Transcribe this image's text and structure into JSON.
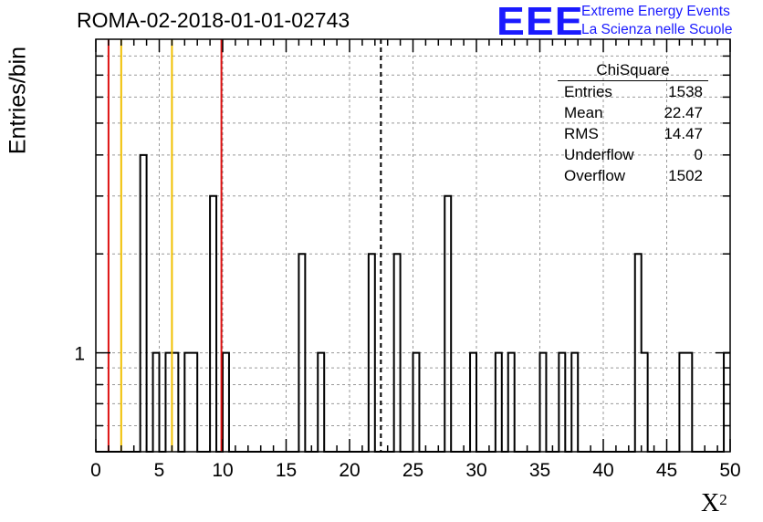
{
  "title": "ROMA-02-2018-01-01-02743",
  "logo": {
    "mark": "EEE",
    "line1": "Extreme Energy Events",
    "line2": "La Scienza nelle Scuole"
  },
  "stats": {
    "title": "ChiSquare",
    "rows": [
      {
        "label": "Entries",
        "value": "1538"
      },
      {
        "label": "Mean",
        "value": "22.47"
      },
      {
        "label": "RMS",
        "value": "14.47"
      },
      {
        "label": "Underflow",
        "value": "0"
      },
      {
        "label": "Overflow",
        "value": "1502"
      }
    ]
  },
  "colors": {
    "histogram": "#000000",
    "red_line": "#dd1111",
    "yellow_line": "#f0c000",
    "grid": "#999999"
  },
  "chart_data": {
    "type": "histogram",
    "ylabel": "Entries/bin",
    "xlabel": "X",
    "xlabel_sup": "2",
    "xlim": [
      0,
      50
    ],
    "y_scale": "log",
    "ylim": [
      0.5,
      9
    ],
    "grid": true,
    "bin_width": 0.5,
    "x_ticks": [
      "0",
      "5",
      "10",
      "15",
      "20",
      "25",
      "30",
      "35",
      "40",
      "45",
      "50"
    ],
    "y_tick_labels": [
      {
        "value": 1,
        "label": "1"
      }
    ],
    "bars": [
      {
        "x0": 3.5,
        "count": 4
      },
      {
        "x0": 4.5,
        "count": 1
      },
      {
        "x0": 5.5,
        "count": 1
      },
      {
        "x0": 6.0,
        "count": 1
      },
      {
        "x0": 7.0,
        "count": 1
      },
      {
        "x0": 7.5,
        "count": 1
      },
      {
        "x0": 9.0,
        "count": 3
      },
      {
        "x0": 10.0,
        "count": 1
      },
      {
        "x0": 16.0,
        "count": 2
      },
      {
        "x0": 17.5,
        "count": 1
      },
      {
        "x0": 21.5,
        "count": 2
      },
      {
        "x0": 23.5,
        "count": 2
      },
      {
        "x0": 25.0,
        "count": 1
      },
      {
        "x0": 27.5,
        "count": 3
      },
      {
        "x0": 29.5,
        "count": 1
      },
      {
        "x0": 31.5,
        "count": 1
      },
      {
        "x0": 32.5,
        "count": 1
      },
      {
        "x0": 35.0,
        "count": 1
      },
      {
        "x0": 36.5,
        "count": 1
      },
      {
        "x0": 37.5,
        "count": 1
      },
      {
        "x0": 42.5,
        "count": 2
      },
      {
        "x0": 43.0,
        "count": 1
      },
      {
        "x0": 46.0,
        "count": 1
      },
      {
        "x0": 46.5,
        "count": 1
      },
      {
        "x0": 49.5,
        "count": 1
      }
    ],
    "vertical_lines": [
      {
        "x": 1,
        "color": "red"
      },
      {
        "x": 2,
        "color": "yellow"
      },
      {
        "x": 6,
        "color": "yellow"
      },
      {
        "x": 9.9,
        "color": "red"
      },
      {
        "x": 22.47,
        "color": "black",
        "style": "dashed"
      }
    ]
  }
}
